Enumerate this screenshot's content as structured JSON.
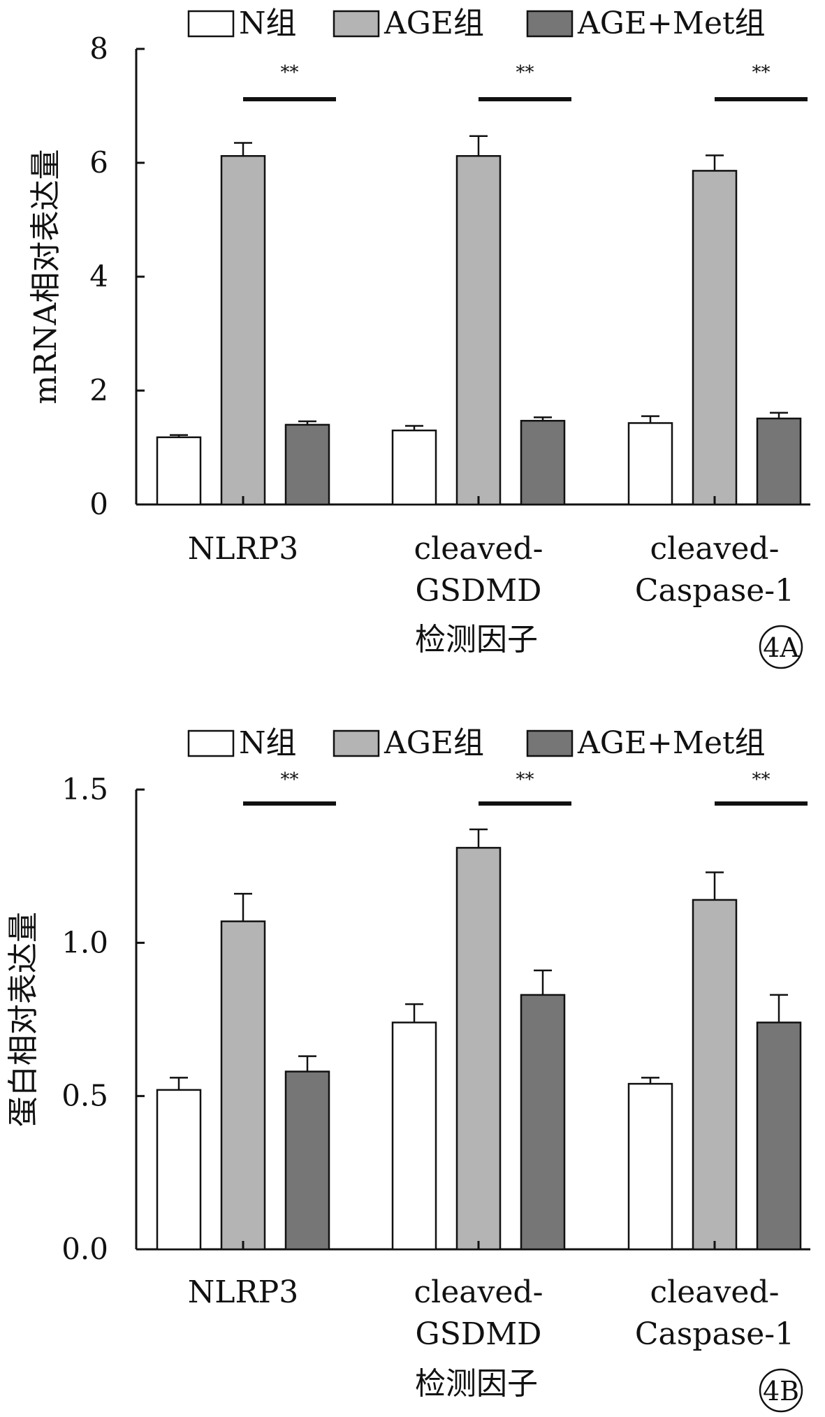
{
  "colors": {
    "N": "#ffffff",
    "AGE": "#b4b4b4",
    "AGE+Met": "#767676",
    "axis": "#111111"
  },
  "chart_data": [
    {
      "type": "bar",
      "panel_label": "4A",
      "ylabel": "mRNA相对表达量",
      "xlabel": "检测因子",
      "ylim": [
        0,
        8
      ],
      "yticks": [
        0,
        2,
        4,
        6,
        8
      ],
      "ytick_labels": [
        "0",
        "2",
        "4",
        "6",
        "8"
      ],
      "categories": [
        [
          "NLRP3"
        ],
        [
          "cleaved-",
          "GSDMD"
        ],
        [
          "cleaved-",
          "Caspase-1"
        ]
      ],
      "series": [
        {
          "name": "N组",
          "color_key": "N",
          "values": [
            1.18,
            1.3,
            1.43
          ],
          "errors": [
            0.04,
            0.08,
            0.12
          ]
        },
        {
          "name": "AGE组",
          "color_key": "AGE",
          "values": [
            6.12,
            6.12,
            5.86
          ],
          "errors": [
            0.23,
            0.35,
            0.27
          ]
        },
        {
          "name": "AGE+Met组",
          "color_key": "AGE+Met",
          "values": [
            1.4,
            1.47,
            1.51
          ],
          "errors": [
            0.06,
            0.06,
            0.1
          ]
        }
      ],
      "significance": [
        "**",
        "**",
        "**"
      ],
      "legend": "top"
    },
    {
      "type": "bar",
      "panel_label": "4B",
      "ylabel": "蛋白相对表达量",
      "xlabel": "检测因子",
      "ylim": [
        0,
        1.5
      ],
      "yticks": [
        0,
        0.5,
        1.0,
        1.5
      ],
      "ytick_labels": [
        "0.0",
        "0.5",
        "1.0",
        "1.5"
      ],
      "categories": [
        [
          "NLRP3"
        ],
        [
          "cleaved-",
          "GSDMD"
        ],
        [
          "cleaved-",
          "Caspase-1"
        ]
      ],
      "series": [
        {
          "name": "N组",
          "color_key": "N",
          "values": [
            0.52,
            0.74,
            0.54
          ],
          "errors": [
            0.04,
            0.06,
            0.02
          ]
        },
        {
          "name": "AGE组",
          "color_key": "AGE",
          "values": [
            1.07,
            1.31,
            1.14
          ],
          "errors": [
            0.09,
            0.06,
            0.09
          ]
        },
        {
          "name": "AGE+Met组",
          "color_key": "AGE+Met",
          "values": [
            0.58,
            0.83,
            0.74
          ],
          "errors": [
            0.05,
            0.08,
            0.09
          ]
        }
      ],
      "significance": [
        "**",
        "**",
        "**"
      ],
      "legend": "top"
    }
  ]
}
